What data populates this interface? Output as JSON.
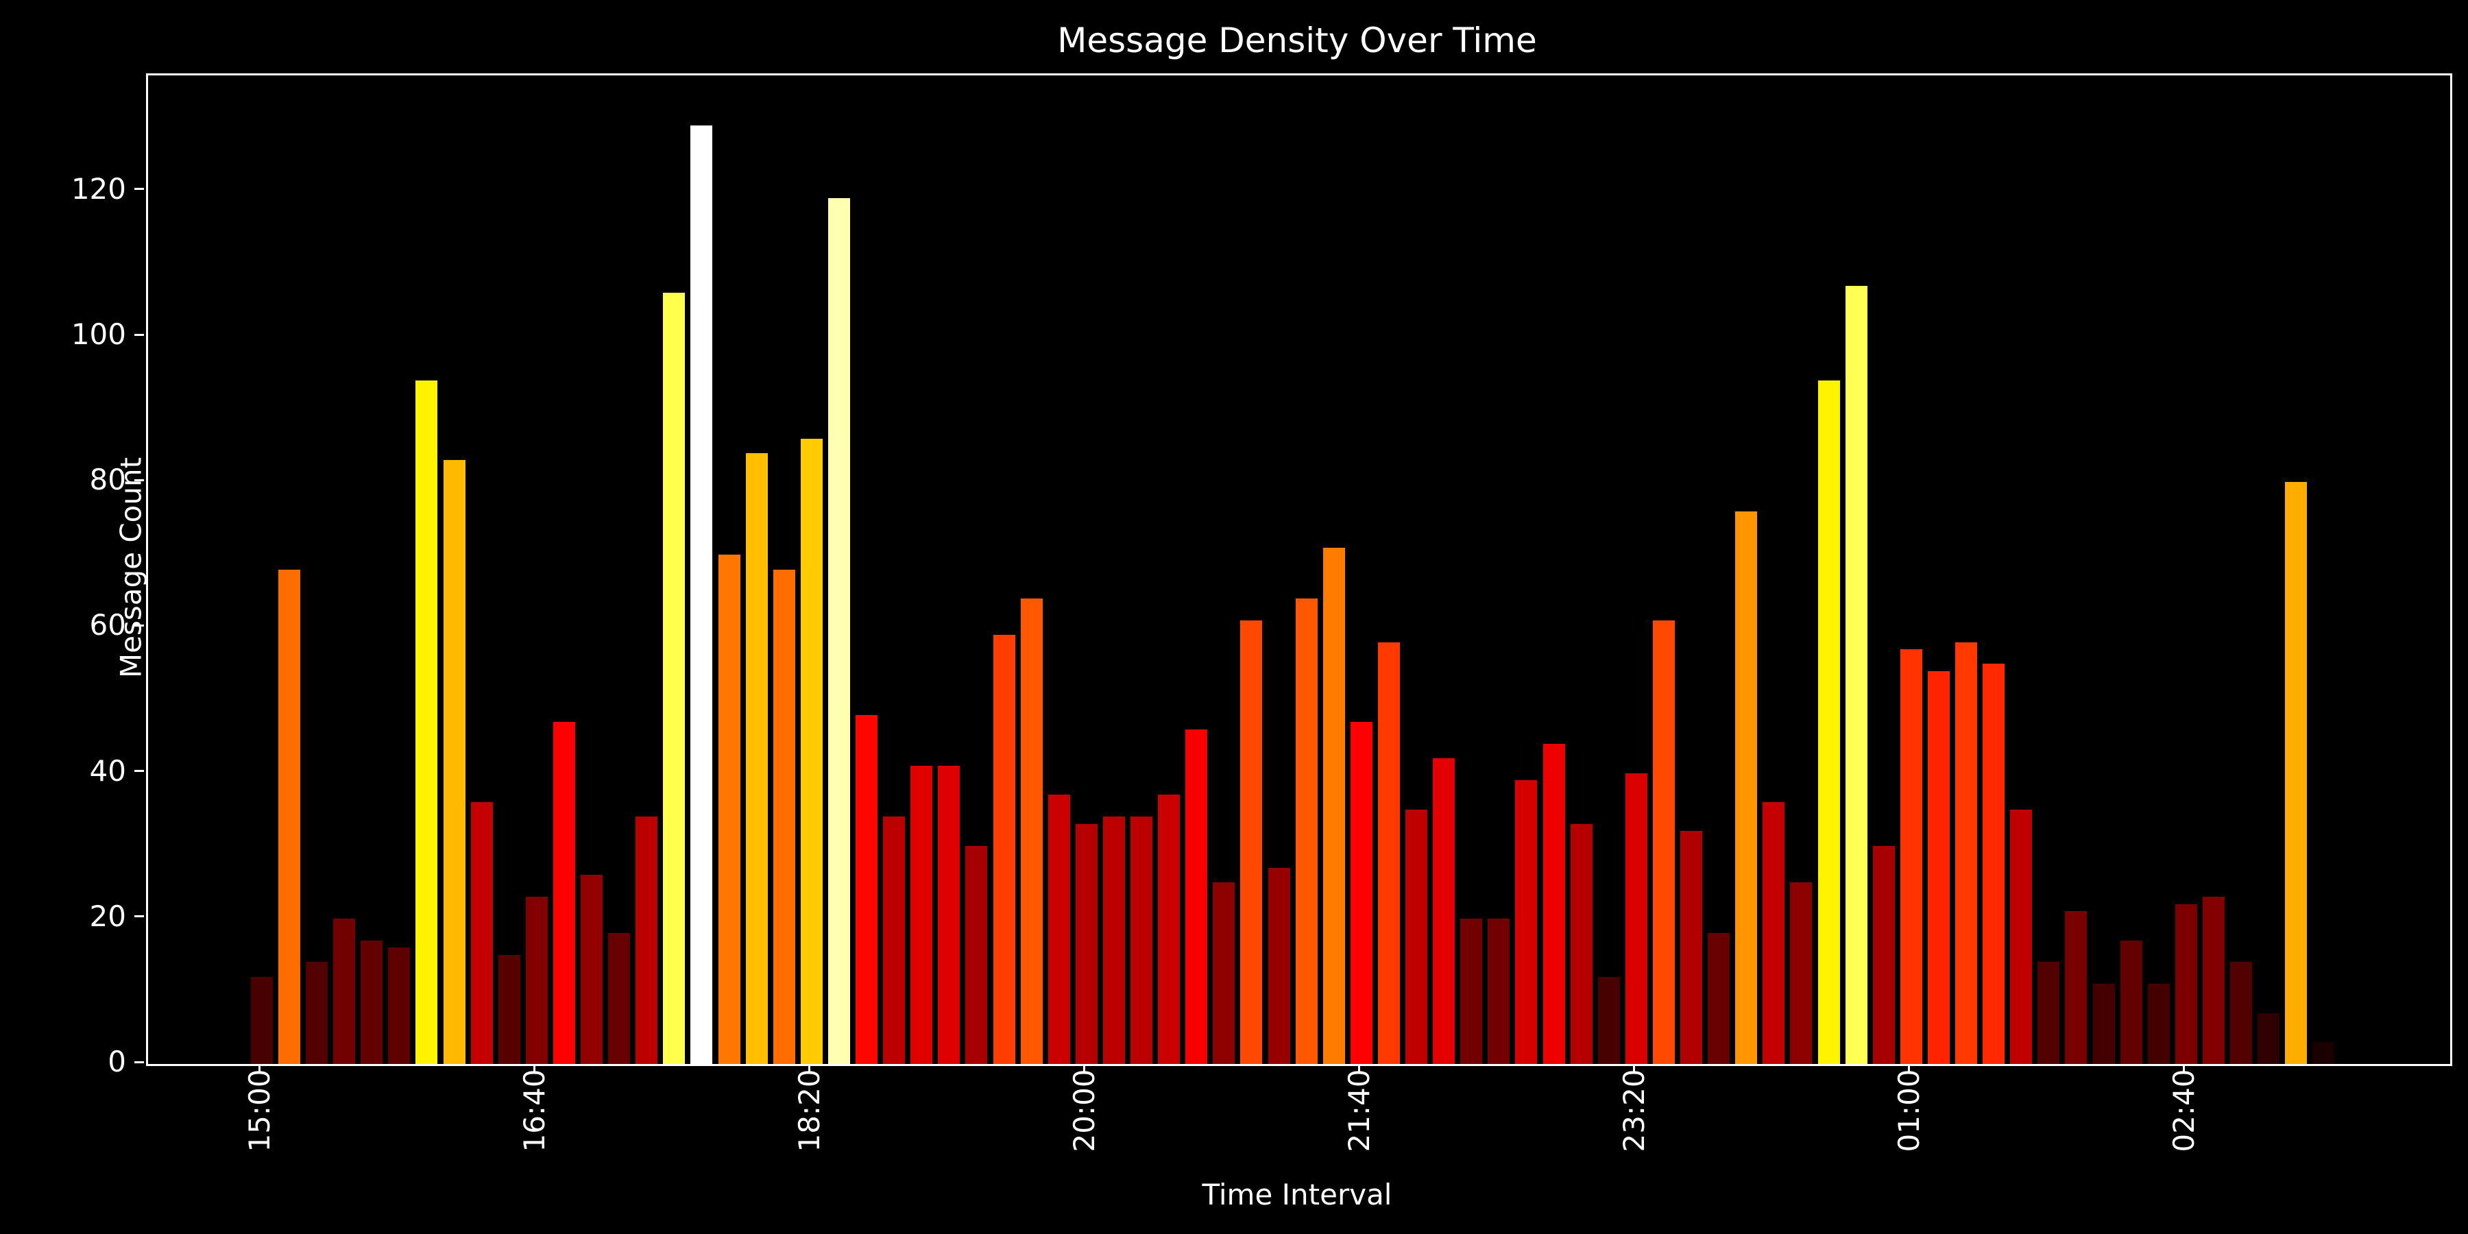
{
  "title": "Message Density Over Time",
  "chart_data": {
    "type": "bar",
    "title": "Message Density Over Time",
    "xlabel": "Time Interval",
    "ylabel": "Message Count",
    "categories": [
      "15:00",
      "15:10",
      "15:20",
      "15:30",
      "15:40",
      "15:50",
      "16:00",
      "16:10",
      "16:20",
      "16:30",
      "16:40",
      "16:50",
      "17:00",
      "17:10",
      "17:20",
      "17:30",
      "17:40",
      "17:50",
      "18:00",
      "18:10",
      "18:20",
      "18:30",
      "18:40",
      "18:50",
      "19:00",
      "19:10",
      "19:20",
      "19:30",
      "19:40",
      "19:50",
      "20:00",
      "20:10",
      "20:20",
      "20:30",
      "20:40",
      "20:50",
      "21:00",
      "21:10",
      "21:20",
      "21:30",
      "21:40",
      "21:50",
      "22:00",
      "22:10",
      "22:20",
      "22:30",
      "22:40",
      "22:50",
      "23:00",
      "23:10",
      "23:20",
      "23:30",
      "23:40",
      "23:50",
      "00:00",
      "00:10",
      "00:20",
      "00:30",
      "00:40",
      "00:50",
      "01:00",
      "01:10",
      "01:20",
      "01:30",
      "01:40",
      "01:50",
      "02:00",
      "02:10",
      "02:20",
      "02:30",
      "02:40",
      "02:50",
      "03:00",
      "03:10",
      "03:20",
      "03:30"
    ],
    "values": [
      12,
      68,
      14,
      20,
      17,
      16,
      94,
      83,
      36,
      15,
      23,
      47,
      26,
      18,
      34,
      106,
      129,
      70,
      84,
      68,
      86,
      119,
      48,
      34,
      41,
      41,
      30,
      59,
      64,
      37,
      33,
      34,
      34,
      37,
      46,
      25,
      61,
      27,
      64,
      71,
      47,
      58,
      35,
      42,
      20,
      20,
      39,
      44,
      33,
      12,
      40,
      61,
      32,
      18,
      76,
      36,
      25,
      94,
      107,
      30,
      57,
      54,
      58,
      55,
      35,
      14,
      21,
      11,
      17,
      11,
      22,
      23,
      14,
      7,
      80,
      3
    ],
    "yticks": [
      0,
      20,
      40,
      60,
      80,
      100,
      120
    ],
    "ylim": [
      0,
      135.9
    ],
    "xtick_labels": [
      "15:00",
      "16:40",
      "18:20",
      "20:00",
      "21:40",
      "23:20",
      "01:00",
      "02:40"
    ],
    "xtick_interval": 10,
    "colormap": "hot",
    "color_vmax": 129,
    "background_color": "#000000",
    "text_color": "#ffffff",
    "grid": false,
    "legend_position": "none"
  }
}
